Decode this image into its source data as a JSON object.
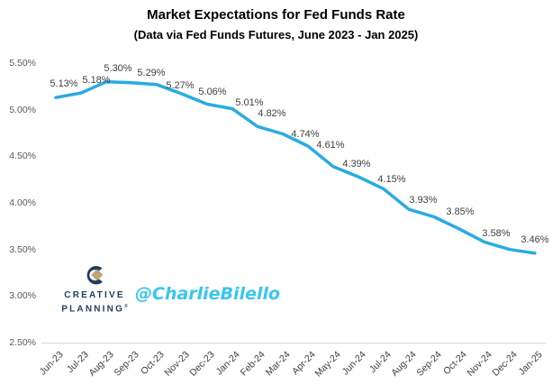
{
  "header": {
    "title": "Market Expectations for Fed Funds Rate",
    "subtitle": "(Data via Fed Funds Futures, June 2023 - Jan 2025)"
  },
  "watermark": "@CharlieBilello",
  "logo": {
    "line1": "CREATIVE",
    "line2": "PLANNING",
    "reg_mark": "®"
  },
  "colors": {
    "line": "#29abe2",
    "watermark_cyan": "#38c5f3",
    "logo_navy": "#1d3e5c",
    "logo_gold": "#bfa472",
    "axis_line_gray": "#d9d9d9",
    "data_label_text": "#404040",
    "axis_text": "#595959"
  },
  "chart_data": {
    "type": "line",
    "title": "Market Expectations for Fed Funds Rate",
    "subtitle": "(Data via Fed Funds Futures, June 2023 - Jan 2025)",
    "x_categories": [
      "Jun-23",
      "Jul-23",
      "Aug-23",
      "Sep-23",
      "Oct-23",
      "Nov-23",
      "Dec-23",
      "Jan-24",
      "Feb-24",
      "Mar-24",
      "Apr-24",
      "May-24",
      "Jun-24",
      "Jul-24",
      "Aug-24",
      "Sep-24",
      "Oct-24",
      "Nov-24",
      "Dec-24",
      "Jan-25"
    ],
    "values": [
      5.13,
      5.18,
      5.3,
      5.29,
      5.27,
      5.17,
      5.06,
      5.01,
      4.82,
      4.74,
      4.61,
      4.39,
      4.28,
      4.15,
      3.93,
      3.85,
      3.72,
      3.58,
      3.5,
      3.46
    ],
    "point_labels": [
      "5.13%",
      "5.18%",
      "5.30%",
      "5.29%",
      "5.27%",
      null,
      "5.06%",
      "5.01%",
      "4.82%",
      "4.74%",
      "4.61%",
      "4.39%",
      null,
      "4.15%",
      "3.93%",
      "3.85%",
      null,
      "3.58%",
      null,
      "3.46%"
    ],
    "y_ticks": [
      "5.50%",
      "5.00%",
      "4.50%",
      "4.00%",
      "3.50%",
      "3.00%",
      "2.50%"
    ],
    "y_tick_values": [
      5.5,
      5.0,
      4.5,
      4.0,
      3.5,
      3.0,
      2.5
    ],
    "ylim": [
      2.5,
      5.5
    ],
    "grid": false,
    "legend": false,
    "series_name": "Fed Funds Rate expectation"
  }
}
